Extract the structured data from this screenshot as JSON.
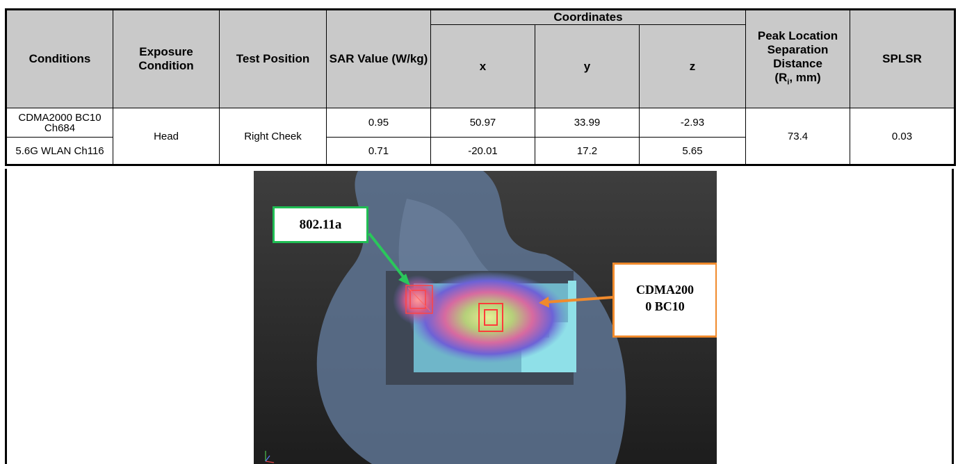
{
  "table": {
    "headers": {
      "conditions": "Conditions",
      "exposure_condition": "Exposure Condition",
      "test_position": "Test Position",
      "sar_value": "SAR Value (W/kg)",
      "coordinates": "Coordinates",
      "x": "x",
      "y": "y",
      "z": "z",
      "peak_location_prefix": "Peak Location Separation Distance",
      "peak_location_unit_open": "(R",
      "peak_location_subscript": "i",
      "peak_location_unit_close": ", mm)",
      "splsr": "SPLSR"
    },
    "exposure_condition": "Head",
    "test_position": "Right Cheek",
    "peak_location_separation_distance": "73.4",
    "splsr": "0.03",
    "rows": [
      {
        "condition": "CDMA2000 BC10 Ch684",
        "sar": "0.95",
        "x": "50.97",
        "y": "33.99",
        "z": "-2.93"
      },
      {
        "condition": "5.6G WLAN Ch116",
        "sar": "0.71",
        "x": "-20.01",
        "y": "17.2",
        "z": "5.65"
      }
    ]
  },
  "figure": {
    "callout_wlan": "802.11a",
    "callout_cdma_line1": "CDMA200",
    "callout_cdma_line2": "0 BC10",
    "colors": {
      "wlan_callout_border": "#1fbd53",
      "cdma_callout_border": "#f08a2c",
      "header_bg": "#c9c9c9"
    }
  }
}
